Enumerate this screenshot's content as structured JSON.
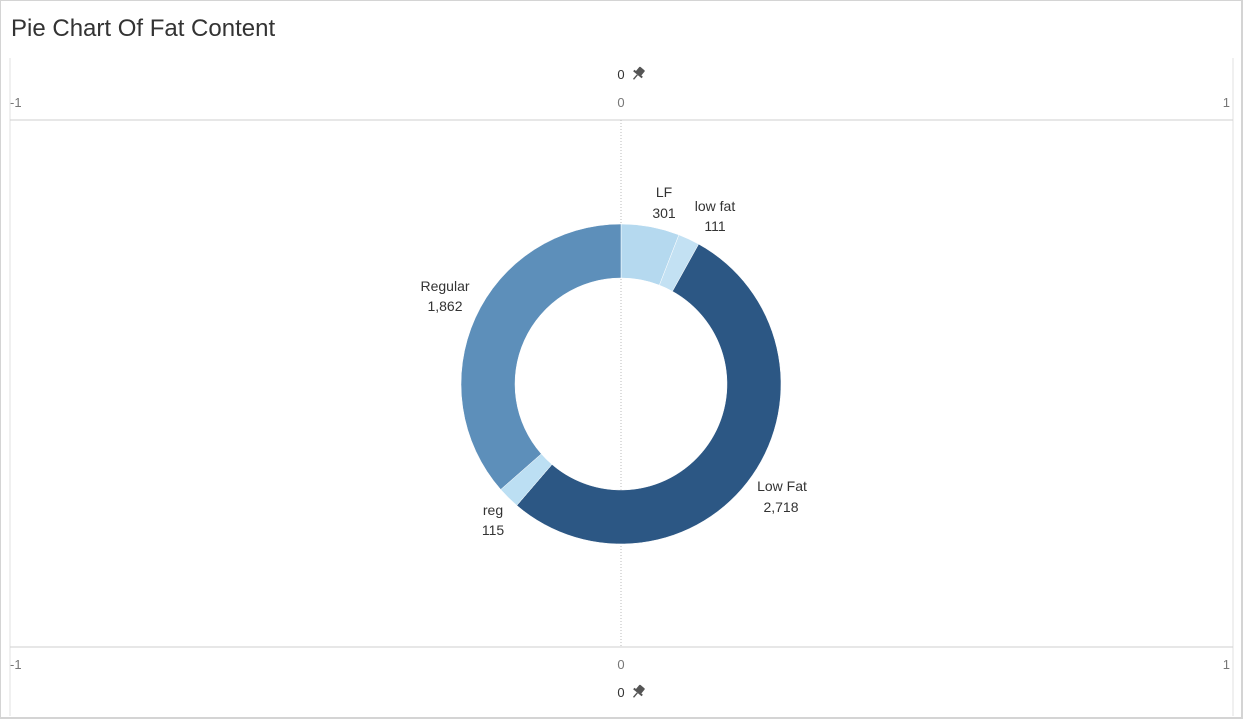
{
  "title": "Pie Chart Of Fat Content",
  "chart_data": {
    "type": "pie",
    "style": "donut",
    "title": "Pie Chart Of Fat Content",
    "slices": [
      {
        "label": "LF",
        "value": 301,
        "color": "#b5d9ef"
      },
      {
        "label": "low fat",
        "value": 111,
        "color": "#c3e1f3"
      },
      {
        "label": "Low Fat",
        "value": 2718,
        "color": "#2c5784"
      },
      {
        "label": "reg",
        "value": 115,
        "color": "#bcdff3"
      },
      {
        "label": "Regular",
        "value": 1862,
        "color": "#5d8fba"
      }
    ],
    "value_labels": [
      "301",
      "111",
      "2,718",
      "115",
      "1,862"
    ],
    "axis_top": {
      "ticks": [
        "-1",
        "0",
        "1"
      ],
      "pinned_label": "0"
    },
    "axis_bottom": {
      "ticks": [
        "-1",
        "0",
        "1"
      ],
      "pinned_label": "0"
    },
    "xlim": [
      -1,
      1
    ]
  }
}
